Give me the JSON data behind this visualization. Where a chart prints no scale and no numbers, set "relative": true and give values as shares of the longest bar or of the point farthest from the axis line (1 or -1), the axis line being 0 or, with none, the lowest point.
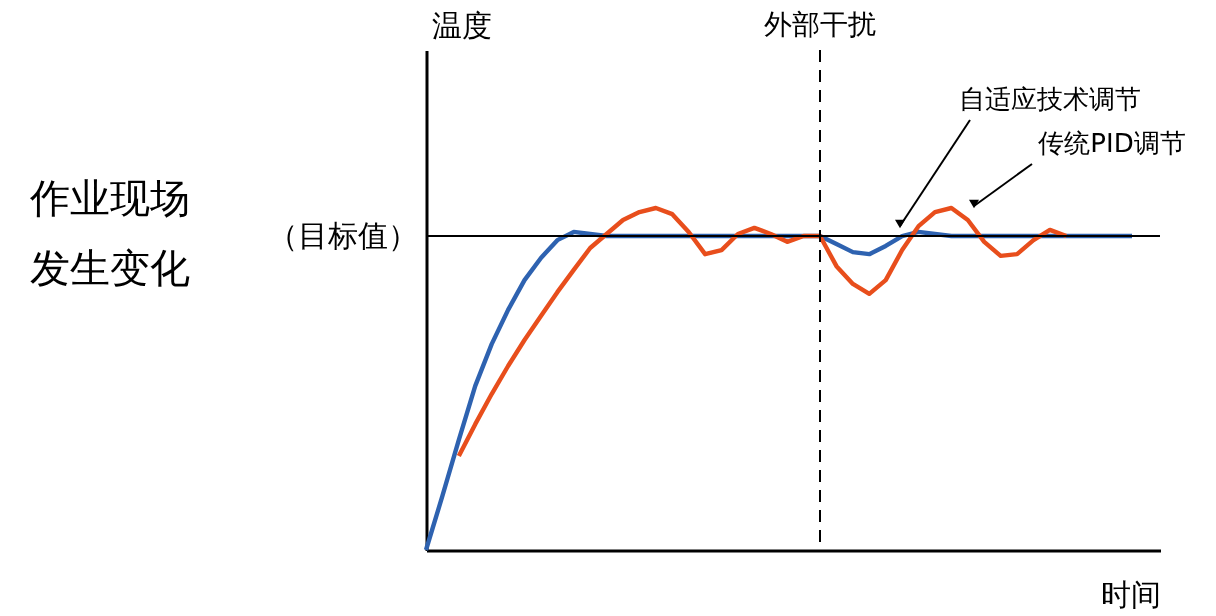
{
  "chart_data": {
    "type": "line",
    "relative": true,
    "xlabel": "时间",
    "tick_labels": false,
    "grid": false,
    "categories": [
      null,
      null,
      null,
      null,
      null,
      null,
      null,
      null,
      null,
      null,
      null,
      null,
      null,
      null,
      null,
      null,
      null,
      null,
      null,
      null,
      null,
      null,
      null,
      null,
      null,
      null,
      null,
      null,
      null,
      null,
      null,
      null,
      null,
      null,
      null,
      null,
      null,
      null,
      null,
      null,
      null,
      null,
      null,
      null
    ],
    "series": [
      {
        "color": "#2e62b0",
        "values": [
          0,
          0.158,
          0.322,
          0.48,
          0.602,
          0.702,
          0.789,
          0.854,
          0.906,
          0.93,
          0.924,
          0.918,
          0.918,
          0.918,
          0.918,
          0.918,
          0.918,
          0.918,
          0.918,
          0.918,
          0.918,
          0.918,
          0.918,
          0.918,
          0.918,
          0.895,
          0.871,
          0.865,
          0.889,
          0.918,
          0.93,
          0.924,
          0.918,
          0.918,
          0.918,
          0.918,
          0.918,
          0.918,
          0.918,
          0.918,
          0.918,
          0.918,
          0.918,
          0.918
        ]
      },
      {
        "color": "#e84e1c",
        "values": [
          null,
          null,
          0.275,
          0.368,
          0.456,
          0.538,
          0.614,
          0.684,
          0.754,
          0.819,
          0.883,
          0.924,
          0.965,
          0.988,
          1,
          0.982,
          0.93,
          0.865,
          0.877,
          0.924,
          0.942,
          0.924,
          0.901,
          0.918,
          0.918,
          0.83,
          0.778,
          0.749,
          0.789,
          0.877,
          0.947,
          0.988,
          1,
          0.965,
          0.901,
          0.86,
          0.865,
          0.906,
          0.936,
          0.918,
          null,
          null,
          null,
          null
        ]
      }
    ],
    "ref_lines": [
      {
        "axis": "y",
        "value": 0.918,
        "label": "（目标值）",
        "color": "#000000",
        "line_style": "solid"
      }
    ],
    "annotations": [
      "自适应技术调节",
      "传统PID调节",
      "作业现场",
      "发生变化",
      "外部干扰",
      "温度"
    ]
  }
}
